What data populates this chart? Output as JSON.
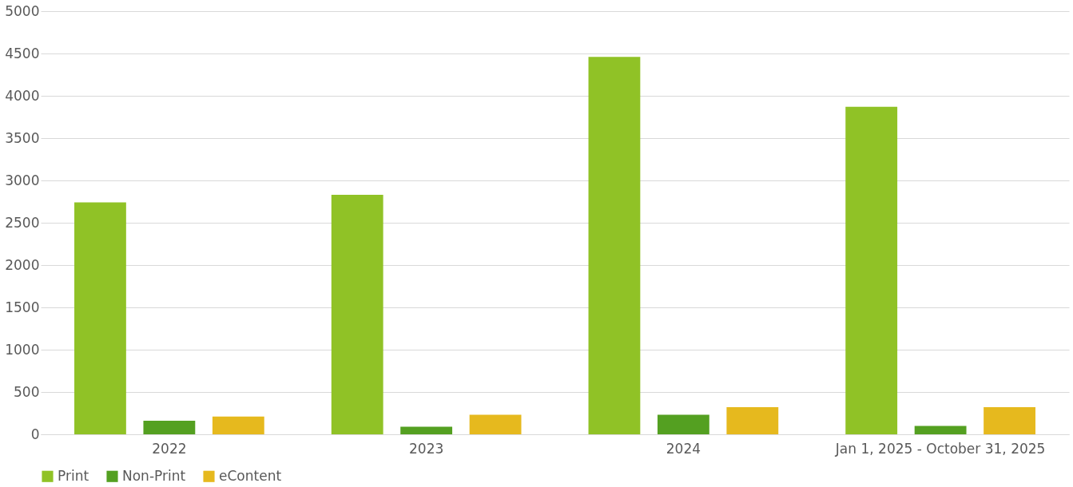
{
  "chart_data": {
    "type": "bar",
    "categories": [
      "2022",
      "2023",
      "2024",
      "Jan 1, 2025 - October 31, 2025"
    ],
    "series": [
      {
        "name": "Print",
        "color": "#90c226",
        "values": [
          2740,
          2830,
          4460,
          3870
        ]
      },
      {
        "name": "Non-Print",
        "color": "#54a021",
        "values": [
          160,
          90,
          230,
          100
        ]
      },
      {
        "name": "eContent",
        "color": "#e6b91e",
        "values": [
          210,
          230,
          320,
          320
        ]
      }
    ],
    "ylim": [
      0,
      5000
    ],
    "yticks": [
      0,
      500,
      1000,
      1500,
      2000,
      2500,
      3000,
      3500,
      4000,
      4500,
      5000
    ],
    "grid": "y",
    "legend": "bottom"
  }
}
